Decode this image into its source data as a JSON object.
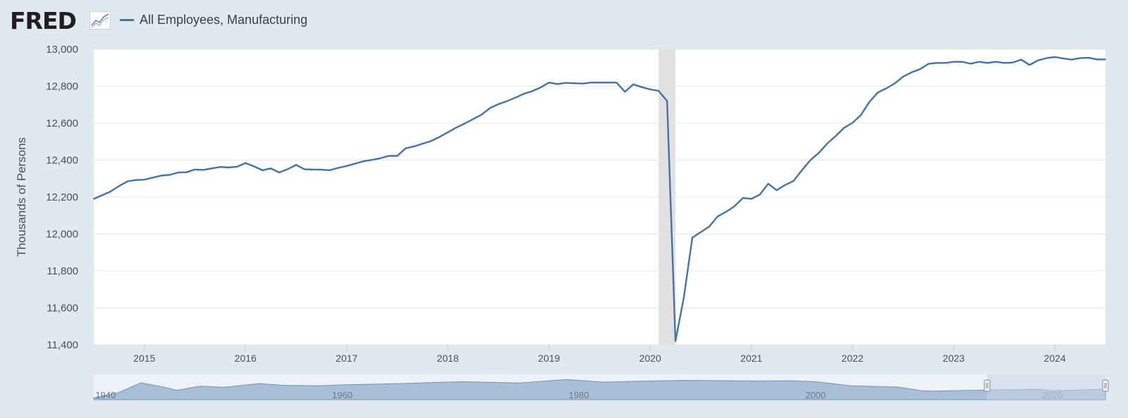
{
  "header": {
    "logo_text": "FRED",
    "legend_label": "All Employees, Manufacturing"
  },
  "colors": {
    "series": "#4572a7",
    "recession": "#e1e1e1",
    "background": "#e1e9f0",
    "plot": "#ffffff",
    "navigator_fill": "#a9bfd8",
    "navigator_mask": "#c7d5e4"
  },
  "chart_data": {
    "type": "line",
    "ylabel": "Thousands of Persons",
    "ylim": [
      11400,
      13000
    ],
    "yticks": [
      "11,400",
      "11,600",
      "11,800",
      "12,000",
      "12,200",
      "12,400",
      "12,600",
      "12,800",
      "13,000"
    ],
    "ytick_values": [
      11400,
      11600,
      11800,
      12000,
      12200,
      12400,
      12600,
      12800,
      13000
    ],
    "xlim": [
      "2014-07-01",
      "2024-07-01"
    ],
    "xticks": [
      "2015",
      "2016",
      "2017",
      "2018",
      "2019",
      "2020",
      "2021",
      "2022",
      "2023",
      "2024"
    ],
    "grid": "horizontal",
    "recession": [
      "2020-02-01",
      "2020-04-01"
    ],
    "series": [
      {
        "name": "All Employees, Manufacturing",
        "x": [
          "2014-07",
          "2014-08",
          "2014-09",
          "2014-10",
          "2014-11",
          "2014-12",
          "2015-01",
          "2015-02",
          "2015-03",
          "2015-04",
          "2015-05",
          "2015-06",
          "2015-07",
          "2015-08",
          "2015-09",
          "2015-10",
          "2015-11",
          "2015-12",
          "2016-01",
          "2016-02",
          "2016-03",
          "2016-04",
          "2016-05",
          "2016-06",
          "2016-07",
          "2016-08",
          "2016-09",
          "2016-10",
          "2016-11",
          "2016-12",
          "2017-01",
          "2017-02",
          "2017-03",
          "2017-04",
          "2017-05",
          "2017-06",
          "2017-07",
          "2017-08",
          "2017-09",
          "2017-10",
          "2017-11",
          "2017-12",
          "2018-01",
          "2018-02",
          "2018-03",
          "2018-04",
          "2018-05",
          "2018-06",
          "2018-07",
          "2018-08",
          "2018-09",
          "2018-10",
          "2018-11",
          "2018-12",
          "2019-01",
          "2019-02",
          "2019-03",
          "2019-04",
          "2019-05",
          "2019-06",
          "2019-07",
          "2019-08",
          "2019-09",
          "2019-10",
          "2019-11",
          "2019-12",
          "2020-01",
          "2020-02",
          "2020-03",
          "2020-04",
          "2020-05",
          "2020-06",
          "2020-07",
          "2020-08",
          "2020-09",
          "2020-10",
          "2020-11",
          "2020-12",
          "2021-01",
          "2021-02",
          "2021-03",
          "2021-04",
          "2021-05",
          "2021-06",
          "2021-07",
          "2021-08",
          "2021-09",
          "2021-10",
          "2021-11",
          "2021-12",
          "2022-01",
          "2022-02",
          "2022-03",
          "2022-04",
          "2022-05",
          "2022-06",
          "2022-07",
          "2022-08",
          "2022-09",
          "2022-10",
          "2022-11",
          "2022-12",
          "2023-01",
          "2023-02",
          "2023-03",
          "2023-04",
          "2023-05",
          "2023-06",
          "2023-07",
          "2023-08",
          "2023-09",
          "2023-10",
          "2023-11",
          "2023-12",
          "2024-01",
          "2024-02",
          "2024-03",
          "2024-04",
          "2024-05",
          "2024-06",
          "2024-07"
        ],
        "values": [
          12190,
          12210,
          12230,
          12260,
          12285,
          12292,
          12294,
          12305,
          12316,
          12320,
          12333,
          12334,
          12349,
          12347,
          12355,
          12363,
          12360,
          12364,
          12384,
          12366,
          12345,
          12355,
          12333,
          12351,
          12374,
          12350,
          12349,
          12348,
          12345,
          12358,
          12368,
          12381,
          12394,
          12401,
          12410,
          12423,
          12423,
          12464,
          12474,
          12489,
          12503,
          12525,
          12551,
          12576,
          12598,
          12622,
          12646,
          12682,
          12703,
          12719,
          12738,
          12759,
          12773,
          12793,
          12820,
          12812,
          12818,
          12816,
          12814,
          12820,
          12820,
          12820,
          12820,
          12770,
          12810,
          12795,
          12783,
          12775,
          12720,
          11420,
          11660,
          11980,
          12010,
          12040,
          12095,
          12120,
          12150,
          12195,
          12190,
          12213,
          12272,
          12237,
          12265,
          12287,
          12345,
          12400,
          12439,
          12490,
          12530,
          12575,
          12602,
          12644,
          12715,
          12766,
          12788,
          12815,
          12852,
          12875,
          12892,
          12921,
          12926,
          12926,
          12932,
          12932,
          12922,
          12932,
          12926,
          12932,
          12926,
          12928,
          12944,
          12915,
          12940,
          12952,
          12958,
          12950,
          12944,
          12952,
          12954,
          12945,
          12945
        ]
      }
    ],
    "navigator": {
      "xlabels": [
        "1940",
        "1960",
        "1980",
        "2000",
        "2020"
      ]
    }
  }
}
